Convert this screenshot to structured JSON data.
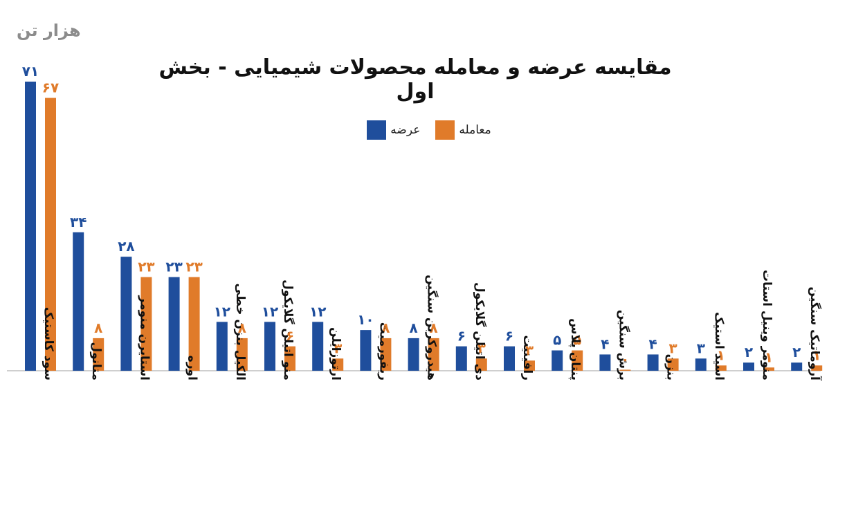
{
  "unit_label": "هزار تن",
  "chart_data": {
    "type": "bar",
    "title": "مقایسه عرضه و معامله محصولات شیمیایی - بخش اول",
    "xlabel": "",
    "ylabel": "هزار تن",
    "ylim": [
      0,
      71
    ],
    "grid": false,
    "legend_placement": "top-center",
    "categories": [
      "سود کاستیک",
      "متانول",
      "استایرن منومر",
      "اوره",
      "الکیل بنزن خطی",
      "منو اتیلن گلایکول",
      "ارتوزایلن",
      "ریفورمیت",
      "هیدروکربن سنگین",
      "دی اتیلن گلایکول",
      "رافینیت",
      "پنتان پلاس",
      "برش سنگین",
      "بنزن",
      "اسید استیک",
      "منومر وینیل استات",
      "آروماتیک سنگین"
    ],
    "value_labels": [
      "۷۱",
      "۶۷",
      "۳۴",
      "۸",
      "۲۸",
      "۲۳",
      "۲۳",
      "۲۳",
      "۱۲",
      "۸",
      "۱۲",
      "۶",
      "۱۲",
      "۳",
      "۱۰",
      "۸",
      "۸",
      "۸",
      "۶",
      "۳",
      "۶",
      "۳",
      "۵",
      "۵",
      "۴",
      "۰",
      "۴",
      "۳",
      "۳",
      "۱",
      "۲",
      "۱",
      "۲",
      "۱"
    ],
    "series": [
      {
        "name": "عرضه",
        "color": "#1f4e9c",
        "values": [
          71,
          34,
          28,
          23,
          12,
          12,
          12,
          10,
          8,
          6,
          6,
          5,
          4,
          4,
          3,
          2,
          2
        ]
      },
      {
        "name": "معامله",
        "color": "#e07b2a",
        "values": [
          67,
          8,
          23,
          23,
          8,
          6,
          3,
          8,
          8,
          3,
          2.5,
          5,
          0.2,
          3,
          1.3,
          0.8,
          1.3
        ]
      }
    ]
  }
}
